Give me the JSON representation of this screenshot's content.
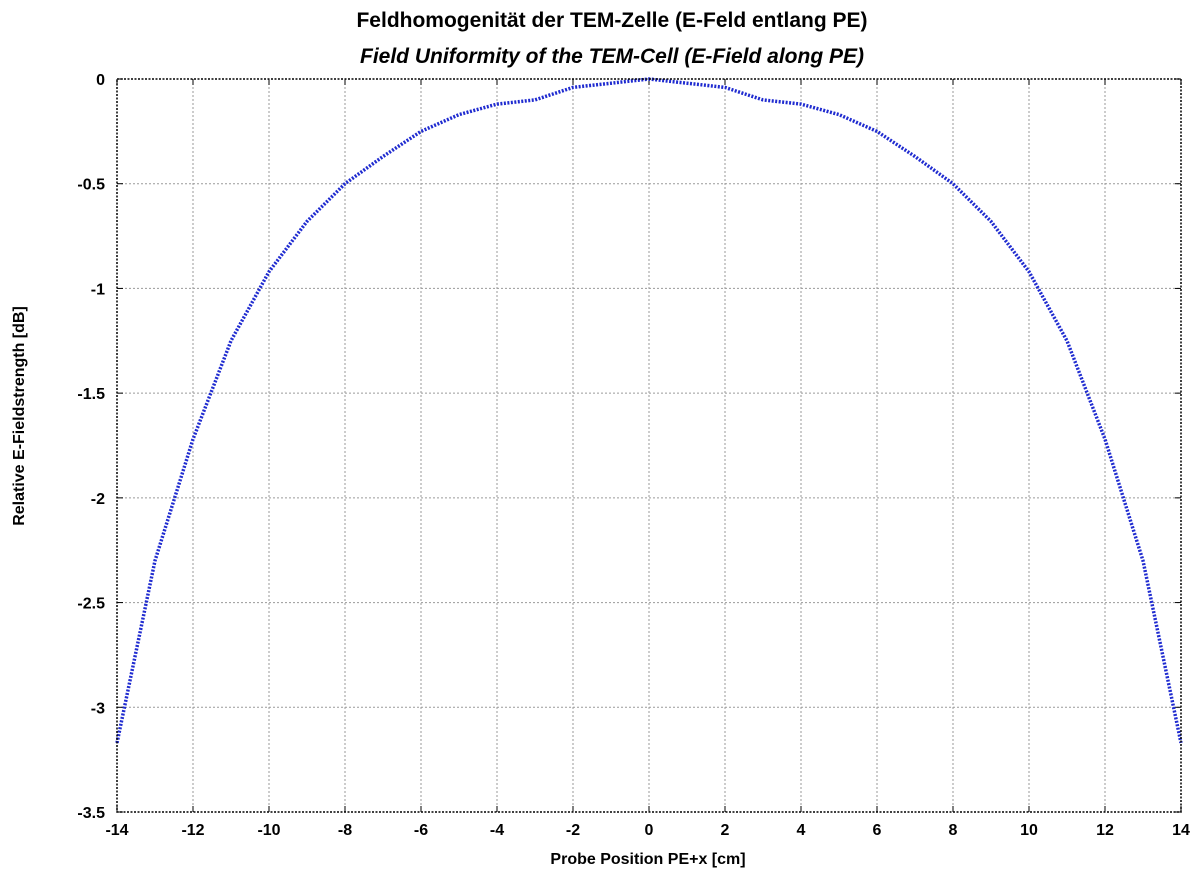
{
  "chart_data": {
    "type": "line",
    "title": "Feldhomogenität der TEM-Zelle (E-Feld entlang PE)",
    "subtitle": "Field Uniformity of the TEM-Cell (E-Field along PE)",
    "xlabel": "Probe Position PE+x [cm]",
    "ylabel": "Relative E-Fieldstrength [dB]",
    "xlim": [
      -14,
      14
    ],
    "ylim": [
      -3.5,
      0
    ],
    "xticks": [
      -14,
      -12,
      -10,
      -8,
      -6,
      -4,
      -2,
      0,
      2,
      4,
      6,
      8,
      10,
      12,
      14
    ],
    "xtick_labels": [
      "-14",
      "-12",
      "-10",
      "-8",
      "-6",
      "-4",
      "-2",
      "0",
      "2",
      "4",
      "6",
      "8",
      "10",
      "12",
      "14"
    ],
    "yticks": [
      0,
      -0.5,
      -1,
      -1.5,
      -2,
      -2.5,
      -3,
      -3.5
    ],
    "ytick_labels": [
      "0",
      "-0.5",
      "-1",
      "-1.5",
      "-2",
      "-2.5",
      "-3",
      "-3.5"
    ],
    "grid": true,
    "line_color": "#1f2bd0",
    "series": [
      {
        "x": [
          -14,
          -13,
          -12,
          -11,
          -10,
          -9,
          -8,
          -7,
          -6,
          -5,
          -4,
          -3,
          -2,
          -1,
          0,
          1,
          2,
          3,
          4,
          5,
          6,
          7,
          8,
          9,
          10,
          11,
          12,
          13,
          14
        ],
        "values": [
          -3.17,
          -2.3,
          -1.72,
          -1.25,
          -0.92,
          -0.68,
          -0.5,
          -0.37,
          -0.25,
          -0.17,
          -0.12,
          -0.1,
          -0.04,
          -0.02,
          0,
          -0.02,
          -0.04,
          -0.1,
          -0.12,
          -0.17,
          -0.25,
          -0.37,
          -0.5,
          -0.68,
          -0.92,
          -1.25,
          -1.72,
          -2.3,
          -3.17
        ]
      }
    ]
  }
}
